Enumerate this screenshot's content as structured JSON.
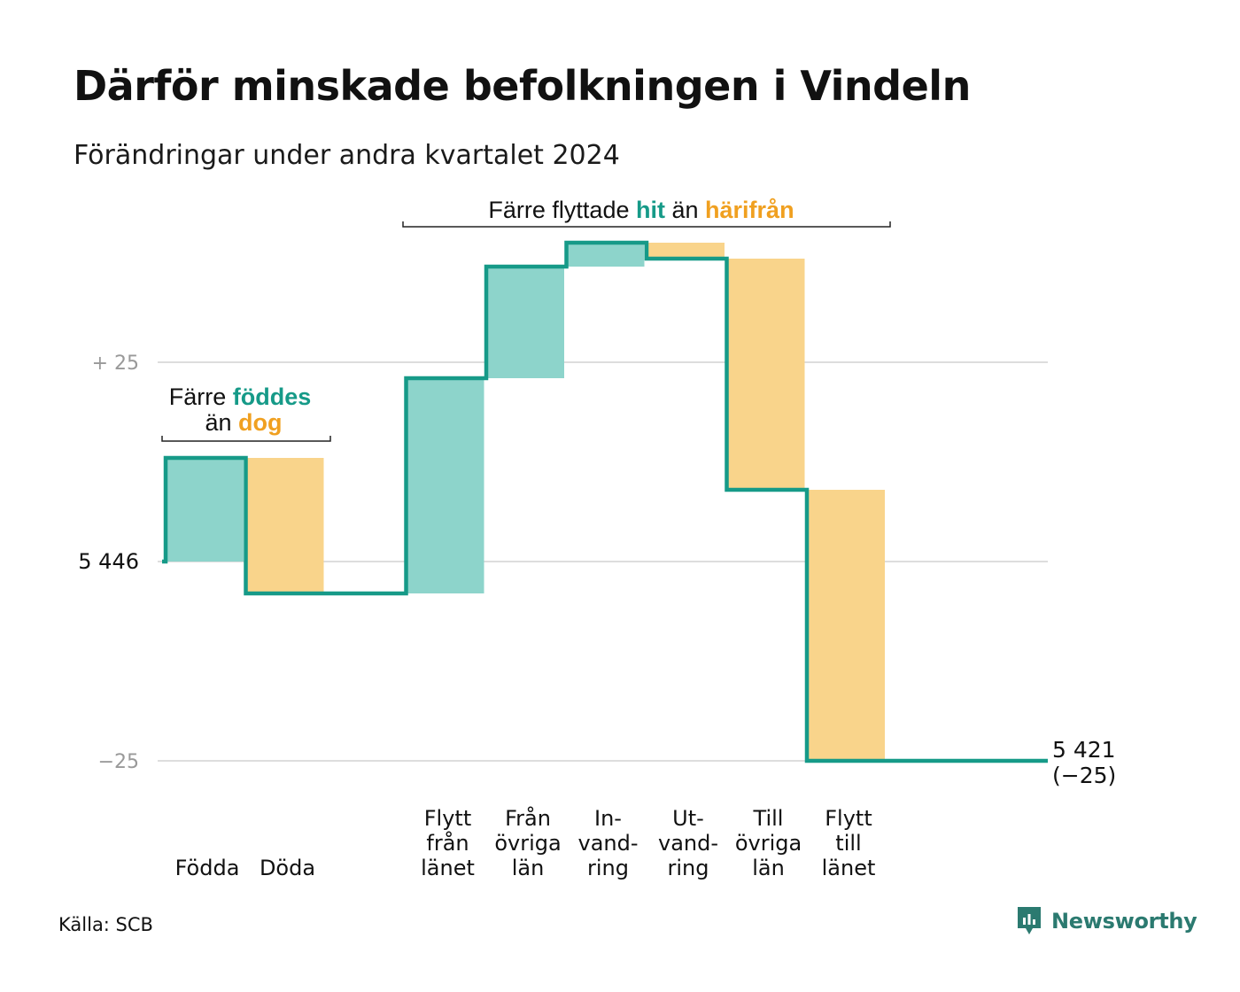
{
  "title": "Därför minskade befolkningen i Vindeln",
  "subtitle": "Förändringar under andra kvartalet 2024",
  "source": "Källa: SCB",
  "brand": {
    "name": "Newsworthy",
    "icon": "newsworthy-logo-icon"
  },
  "colors": {
    "inflow": "#8dd4cb",
    "outflow": "#f9d48b",
    "line": "#169a88",
    "hit": "#169a88",
    "harifran": "#f0a020",
    "grid": "#dddddd",
    "axis_label": "#999999"
  },
  "annotations": {
    "births": {
      "line1_pre": "Färre ",
      "line1_em": "föddes",
      "line2_pre": "än ",
      "line2_em": "dog"
    },
    "migration": {
      "pre": "Färre flyttade ",
      "em1": "hit",
      "mid": " än ",
      "em2": "härifrån"
    }
  },
  "chart_data": {
    "type": "waterfall",
    "start_value": 5446,
    "end_value": 5421,
    "end_label_line1": "5 421",
    "end_label_line2": "(−25)",
    "start_label": "5 446",
    "y_ticks": [
      {
        "value": 25,
        "label": "+  25"
      },
      {
        "value": 0,
        "label": "5 446"
      },
      {
        "value": -25,
        "label": "−25"
      }
    ],
    "ylim": [
      -25,
      30
    ],
    "grid": true,
    "categories": [
      {
        "label": [
          "Födda"
        ],
        "delta": 13,
        "kind": "inflow"
      },
      {
        "label": [
          "Döda"
        ],
        "delta": -17,
        "kind": "outflow"
      },
      {
        "label": [],
        "delta": 0,
        "kind": "gap"
      },
      {
        "label": [
          "Flytt",
          "från",
          "länet"
        ],
        "delta": 27,
        "kind": "inflow"
      },
      {
        "label": [
          "Från",
          "övriga",
          "län"
        ],
        "delta": 14,
        "kind": "inflow"
      },
      {
        "label": [
          "In-",
          "vand-",
          "ring"
        ],
        "delta": 3,
        "kind": "inflow"
      },
      {
        "label": [
          "Ut-",
          "vand-",
          "ring"
        ],
        "delta": -2,
        "kind": "outflow"
      },
      {
        "label": [
          "Till",
          "övriga",
          "län"
        ],
        "delta": -29,
        "kind": "outflow"
      },
      {
        "label": [
          "Flytt",
          "till",
          "länet"
        ],
        "delta": -34,
        "kind": "outflow"
      }
    ]
  }
}
